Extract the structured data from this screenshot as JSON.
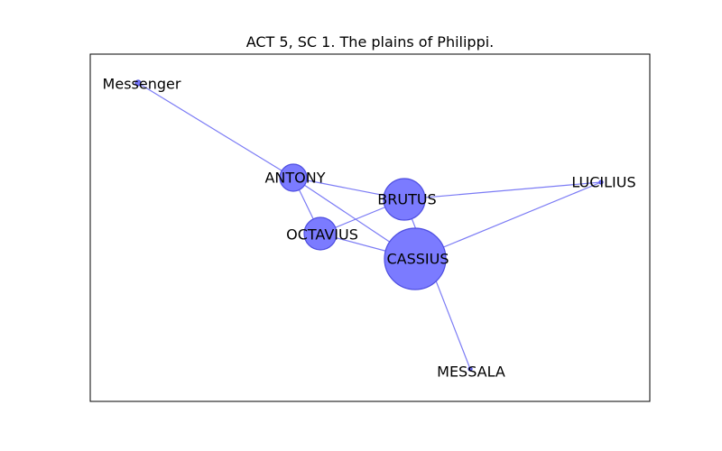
{
  "title": "ACT 5, SC 1. The plains of Philippi.",
  "colors": {
    "node_fill": "#7B7BFF",
    "node_stroke": "#4D4DE0",
    "edge": "#7B7BF5",
    "frame": "#000000"
  },
  "nodes": [
    {
      "id": "Messenger",
      "label": "Messenger"
    },
    {
      "id": "ANTONY",
      "label": "ANTONY"
    },
    {
      "id": "BRUTUS",
      "label": "BRUTUS"
    },
    {
      "id": "LUCILIUS",
      "label": "LUCILIUS"
    },
    {
      "id": "OCTAVIUS",
      "label": "OCTAVIUS"
    },
    {
      "id": "CASSIUS",
      "label": "CASSIUS"
    },
    {
      "id": "MESSALA",
      "label": "MESSALA"
    }
  ],
  "edges": [
    {
      "source": "Messenger",
      "target": "ANTONY"
    },
    {
      "source": "ANTONY",
      "target": "BRUTUS"
    },
    {
      "source": "ANTONY",
      "target": "OCTAVIUS"
    },
    {
      "source": "ANTONY",
      "target": "CASSIUS"
    },
    {
      "source": "BRUTUS",
      "target": "LUCILIUS"
    },
    {
      "source": "BRUTUS",
      "target": "OCTAVIUS"
    },
    {
      "source": "BRUTUS",
      "target": "MESSALA"
    },
    {
      "source": "OCTAVIUS",
      "target": "CASSIUS"
    },
    {
      "source": "CASSIUS",
      "target": "LUCILIUS"
    }
  ]
}
